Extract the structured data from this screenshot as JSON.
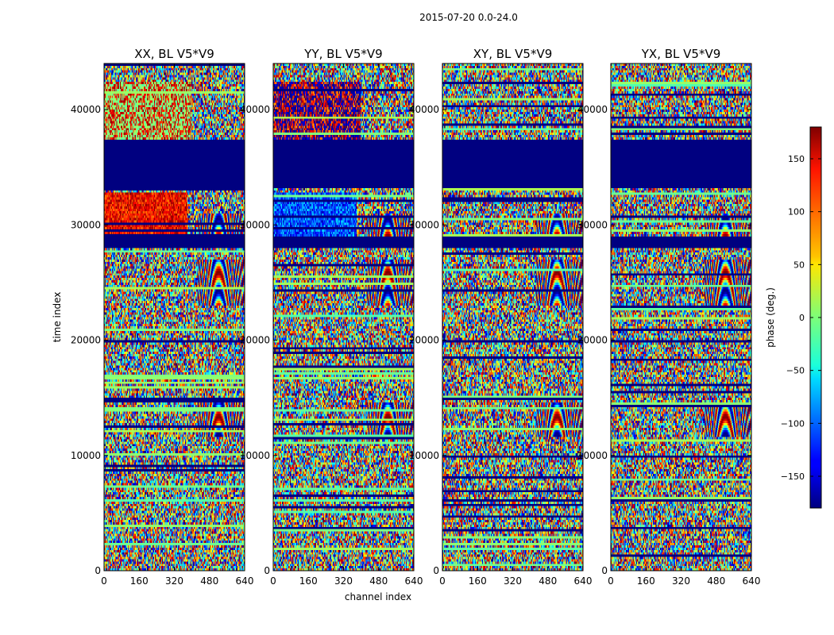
{
  "figure": {
    "suptitle": "2015-07-20 0.0-24.0"
  },
  "chart_data": [
    {
      "type": "heatmap",
      "title": "XX, BL V5*V9",
      "xlabel": "",
      "ylabel": "time index",
      "xlim": [
        0,
        640
      ],
      "ylim": [
        0,
        44000
      ],
      "xticks": [
        "0",
        "160",
        "320",
        "480",
        "640"
      ],
      "yticks": [
        "0",
        "10000",
        "20000",
        "30000",
        "40000"
      ],
      "value_range": [
        -180,
        180
      ],
      "description": "Phase waterfall; masked/flagged time block 33000-37500 at phase -180"
    },
    {
      "type": "heatmap",
      "title": "YY, BL V5*V9",
      "xlabel": "channel index",
      "ylabel": "",
      "xlim": [
        0,
        640
      ],
      "ylim": [
        0,
        44000
      ],
      "xticks": [
        "0",
        "160",
        "320",
        "480",
        "640"
      ],
      "yticks": [
        "0",
        "10000",
        "20000",
        "30000",
        "40000"
      ],
      "value_range": [
        -180,
        180
      ]
    },
    {
      "type": "heatmap",
      "title": "XY, BL V5*V9",
      "xlabel": "",
      "ylabel": "",
      "xlim": [
        0,
        640
      ],
      "ylim": [
        0,
        44000
      ],
      "xticks": [
        "0",
        "160",
        "320",
        "480",
        "640"
      ],
      "yticks": [
        "0",
        "10000",
        "20000",
        "30000",
        "40000"
      ],
      "value_range": [
        -180,
        180
      ]
    },
    {
      "type": "heatmap",
      "title": "YX, BL V5*V9",
      "xlabel": "",
      "ylabel": "",
      "xlim": [
        0,
        640
      ],
      "ylim": [
        0,
        44000
      ],
      "xticks": [
        "0",
        "160",
        "320",
        "480",
        "640"
      ],
      "yticks": [
        "0",
        "10000",
        "20000",
        "30000",
        "40000"
      ],
      "value_range": [
        -180,
        180
      ]
    }
  ],
  "colorbar": {
    "label": "phase (deg.)",
    "range": [
      -180,
      180
    ],
    "ticks": [
      "150",
      "100",
      "50",
      "0",
      "−50",
      "−100",
      "−150"
    ],
    "tick_values": [
      150,
      100,
      50,
      0,
      -50,
      -100,
      -150
    ],
    "colormap": "jet"
  }
}
